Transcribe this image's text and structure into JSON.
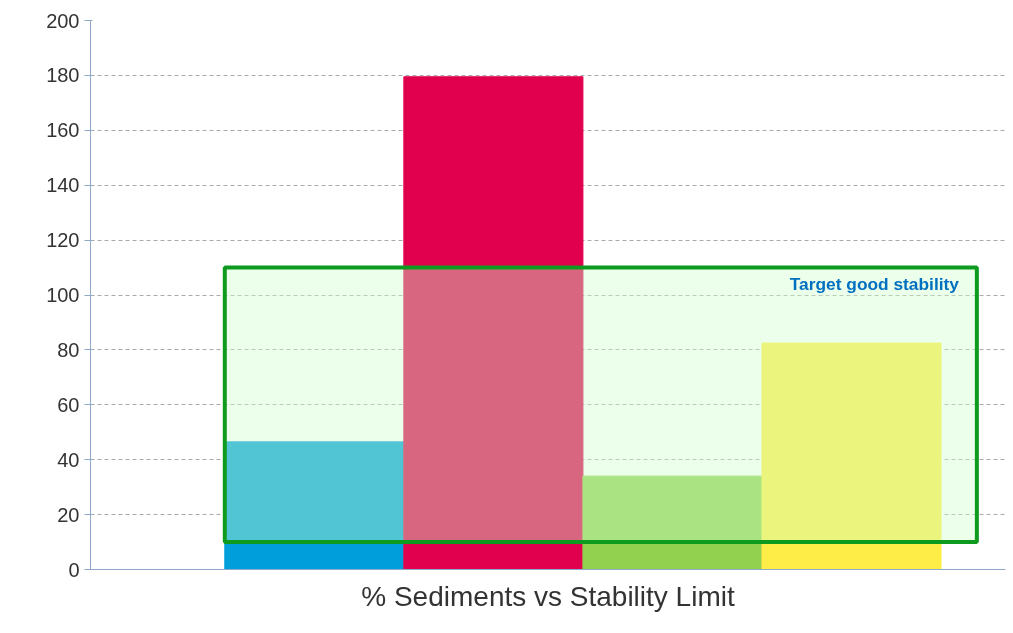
{
  "chart_data": {
    "type": "bar",
    "xlabel": "% Sediments vs Stability Limit",
    "categories": [
      null,
      null,
      null,
      null
    ],
    "values": [
      46.5,
      179.5,
      34,
      82.5
    ],
    "colors": [
      "#009fdb",
      "#e0004d",
      "#92d050",
      "#ffed47"
    ],
    "ylim": [
      0,
      200
    ],
    "yticks": [
      0,
      20,
      40,
      60,
      80,
      100,
      120,
      140,
      160,
      180,
      200
    ],
    "grid": "y",
    "bands": [
      {
        "axis": "y",
        "from": 10,
        "to": 110,
        "label": "Target good stability",
        "color": "#0e9a1e"
      }
    ]
  }
}
